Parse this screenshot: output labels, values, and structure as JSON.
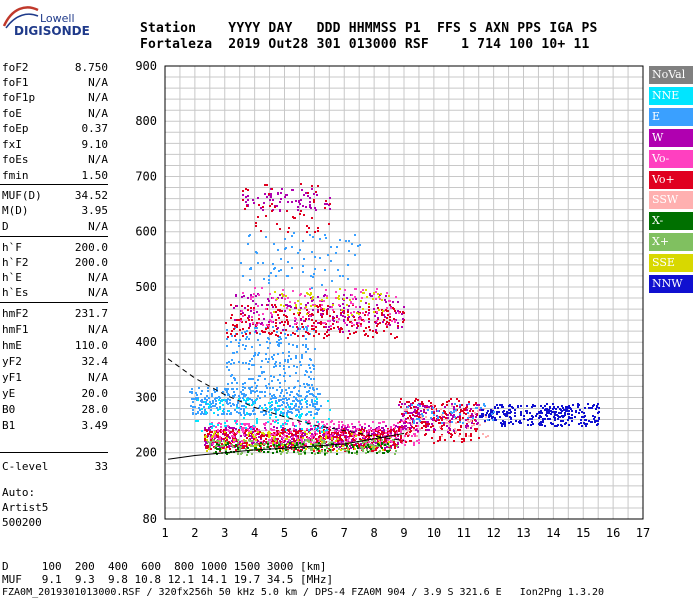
{
  "logo": {
    "top": "Lowell",
    "main": "DIGISONDE"
  },
  "header": {
    "row1": "Station    YYYY DAY   DDD HHMMSS P1  FFS S AXN PPS IGA PS",
    "row2": "Fortaleza  2019 Out28 301 013000 RSF    1 714 100 10+ 11"
  },
  "params": [
    {
      "name": "foF2",
      "value": "8.750"
    },
    {
      "name": "foF1",
      "value": "N/A"
    },
    {
      "name": "foF1p",
      "value": "N/A"
    },
    {
      "name": "foE",
      "value": "N/A"
    },
    {
      "name": "foEp",
      "value": "0.37"
    },
    {
      "name": "fxI",
      "value": "9.10"
    },
    {
      "name": "foEs",
      "value": "N/A"
    },
    {
      "name": "fmin",
      "value": "1.50"
    },
    {
      "name": "MUF(D)",
      "value": "34.52"
    },
    {
      "name": "M(D)",
      "value": "3.95"
    },
    {
      "name": "D",
      "value": "N/A"
    },
    {
      "name": "h`F",
      "value": "200.0"
    },
    {
      "name": "h`F2",
      "value": "200.0"
    },
    {
      "name": "h`E",
      "value": "N/A"
    },
    {
      "name": "h`Es",
      "value": "N/A"
    },
    {
      "name": "hmF2",
      "value": "231.7"
    },
    {
      "name": "hmF1",
      "value": "N/A"
    },
    {
      "name": "hmE",
      "value": "110.0"
    },
    {
      "name": "yF2",
      "value": "32.4"
    },
    {
      "name": "yF1",
      "value": "N/A"
    },
    {
      "name": "yE",
      "value": "20.0"
    },
    {
      "name": "B0",
      "value": "28.0"
    },
    {
      "name": "B1",
      "value": "3.49"
    },
    {
      "name": "C-level",
      "value": "33"
    }
  ],
  "auto": {
    "l1": "Auto:",
    "l2": "Artist5",
    "l3": "500200"
  },
  "footer": {
    "d_row": "D     100  200  400  600  800 1000 1500 3000 [km]",
    "muf_row": "MUF   9.1  9.3  9.8 10.8 12.1 14.1 19.7 34.5 [MHz]",
    "info": "FZA0M_2019301013000.RSF / 320fx256h 50 kHz 5.0 km / DPS-4 FZA0M 904 / 3.9 S 321.6 E   Ion2Png 1.3.20"
  },
  "legend": [
    {
      "label": "NoVal",
      "color": "#808080"
    },
    {
      "label": "NNE",
      "color": "#00e5ff"
    },
    {
      "label": "E",
      "color": "#3aa0ff"
    },
    {
      "label": "W",
      "color": "#b000b0"
    },
    {
      "label": "Vo-",
      "color": "#ff40c0"
    },
    {
      "label": "Vo+",
      "color": "#e00020"
    },
    {
      "label": "SSW",
      "color": "#ffb0b0"
    },
    {
      "label": "X-",
      "color": "#007000"
    },
    {
      "label": "X+",
      "color": "#80c060"
    },
    {
      "label": "SSE",
      "color": "#d8d800"
    },
    {
      "label": "NNW",
      "color": "#1010d0"
    }
  ],
  "chart_data": {
    "type": "scatter",
    "title": "",
    "xlabel": "",
    "ylabel": "",
    "xlim": [
      1,
      17
    ],
    "ylim": [
      80,
      900
    ],
    "x_ticks": [
      1,
      2,
      3,
      4,
      5,
      6,
      7,
      8,
      9,
      10,
      11,
      12,
      13,
      14,
      15,
      16,
      17
    ],
    "y_ticks": [
      80,
      200,
      300,
      400,
      500,
      600,
      700,
      800,
      900
    ],
    "grid": true,
    "legend_position": "right",
    "clusters": [
      {
        "series": "W",
        "x": [
          2.3,
          8.8
        ],
        "y": [
          210,
          250
        ],
        "n": 450
      },
      {
        "series": "Vo+",
        "x": [
          2.3,
          8.8
        ],
        "y": [
          205,
          245
        ],
        "n": 500
      },
      {
        "series": "Vo-",
        "x": [
          2.5,
          9.5
        ],
        "y": [
          215,
          260
        ],
        "n": 300
      },
      {
        "series": "E",
        "x": [
          1.8,
          6.2
        ],
        "y": [
          270,
          320
        ],
        "n": 350
      },
      {
        "series": "E",
        "x": [
          3.0,
          6.0
        ],
        "y": [
          320,
          430
        ],
        "n": 200
      },
      {
        "series": "NNE",
        "x": [
          2.0,
          6.5
        ],
        "y": [
          240,
          300
        ],
        "n": 120
      },
      {
        "series": "SSE",
        "x": [
          2.3,
          8.5
        ],
        "y": [
          205,
          240
        ],
        "n": 120
      },
      {
        "series": "X+",
        "x": [
          2.4,
          8.8
        ],
        "y": [
          198,
          225
        ],
        "n": 200
      },
      {
        "series": "X-",
        "x": [
          2.6,
          8.5
        ],
        "y": [
          200,
          220
        ],
        "n": 100
      },
      {
        "series": "Vo+",
        "x": [
          3.0,
          9.0
        ],
        "y": [
          410,
          470
        ],
        "n": 250
      },
      {
        "series": "W",
        "x": [
          3.0,
          9.0
        ],
        "y": [
          420,
          490
        ],
        "n": 150
      },
      {
        "series": "Vo-",
        "x": [
          3.5,
          9.0
        ],
        "y": [
          430,
          500
        ],
        "n": 120
      },
      {
        "series": "SSE",
        "x": [
          4.5,
          8.5
        ],
        "y": [
          450,
          500
        ],
        "n": 60
      },
      {
        "series": "E",
        "x": [
          3.5,
          7.5
        ],
        "y": [
          500,
          600
        ],
        "n": 80
      },
      {
        "series": "W",
        "x": [
          3.5,
          6.5
        ],
        "y": [
          640,
          680
        ],
        "n": 70
      },
      {
        "series": "Vo+",
        "x": [
          3.5,
          6.5
        ],
        "y": [
          600,
          690
        ],
        "n": 50
      },
      {
        "series": "Vo+",
        "x": [
          8.8,
          11.5
        ],
        "y": [
          220,
          300
        ],
        "n": 220
      },
      {
        "series": "W",
        "x": [
          8.8,
          11.5
        ],
        "y": [
          240,
          290
        ],
        "n": 120
      },
      {
        "series": "SSW",
        "x": [
          9.0,
          12.0
        ],
        "y": [
          230,
          290
        ],
        "n": 60
      },
      {
        "series": "NNW",
        "x": [
          12.0,
          15.5
        ],
        "y": [
          250,
          290
        ],
        "n": 260
      },
      {
        "series": "NNW",
        "x": [
          11.5,
          12.0
        ],
        "y": [
          260,
          280
        ],
        "n": 30
      },
      {
        "series": "E",
        "x": [
          9.0,
          12.0
        ],
        "y": [
          255,
          290
        ],
        "n": 50
      }
    ],
    "curves": [
      {
        "name": "dashed-upper",
        "style": "dashed",
        "x": [
          1.1,
          2,
          3,
          4,
          5,
          6,
          7,
          8,
          9
        ],
        "y": [
          370,
          335,
          305,
          282,
          265,
          250,
          240,
          230,
          222
        ]
      },
      {
        "name": "solid-profile",
        "style": "solid",
        "x": [
          1.1,
          2,
          3,
          4,
          5,
          6,
          7,
          8,
          9
        ],
        "y": [
          188,
          195,
          200,
          205,
          208,
          212,
          216,
          225,
          235
        ]
      }
    ]
  }
}
